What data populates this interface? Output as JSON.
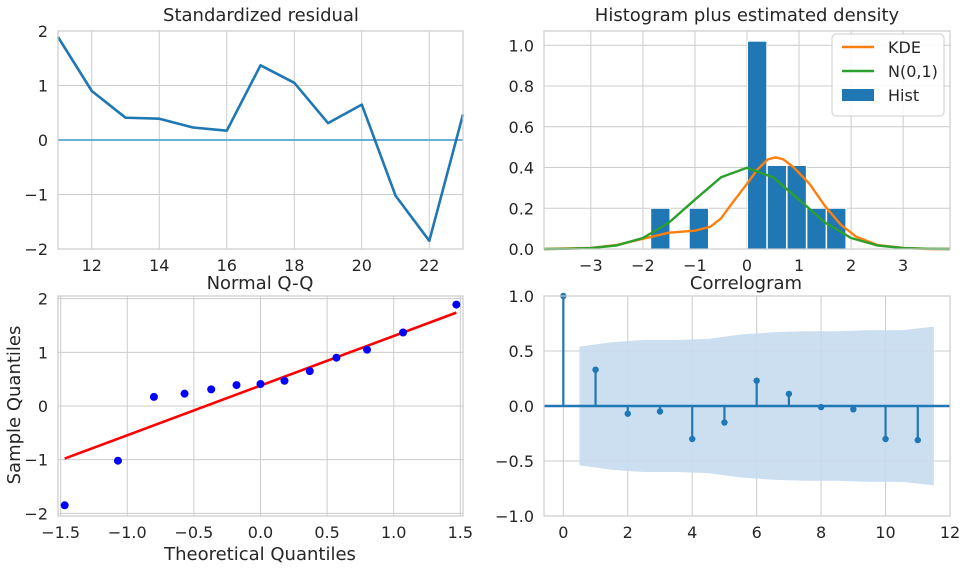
{
  "chart_data": [
    {
      "type": "line",
      "title": "Standardized residual",
      "xlabel": "",
      "ylabel": "",
      "xlim": [
        11,
        23
      ],
      "ylim": [
        -2,
        2
      ],
      "xticks": [
        12,
        14,
        16,
        18,
        20,
        22
      ],
      "xtick_labels": [
        "12",
        "14",
        "16",
        "18",
        "20",
        "22"
      ],
      "yticks": [
        -2,
        -1,
        0,
        1,
        2
      ],
      "ytick_labels": [
        "−2",
        "−1",
        "0",
        "1",
        "2"
      ],
      "grid": true,
      "series": [
        {
          "x": [
            11,
            12,
            13,
            14,
            15,
            16,
            17,
            18,
            19,
            20,
            21,
            22,
            23
          ],
          "values": [
            1.89,
            0.9,
            0.41,
            0.39,
            0.23,
            0.17,
            1.37,
            1.05,
            0.31,
            0.65,
            -1.02,
            -1.85,
            0.47
          ],
          "color": "#1f77b4"
        }
      ],
      "hline": {
        "y": 0,
        "color": "#6baed6"
      }
    },
    {
      "type": "bar",
      "title": "Histogram plus estimated density",
      "xlabel": "",
      "ylabel": "",
      "xlim": [
        -3.9,
        3.9
      ],
      "ylim": [
        0,
        1.07
      ],
      "xticks": [
        -3,
        -2,
        -1,
        0,
        1,
        2,
        3
      ],
      "xtick_labels": [
        "−3",
        "−2",
        "−1",
        "0",
        "1",
        "2",
        "3"
      ],
      "yticks": [
        0,
        0.2,
        0.4,
        0.6,
        0.8,
        1.0
      ],
      "ytick_labels": [
        "0.0",
        "0.2",
        "0.4",
        "0.6",
        "0.8",
        "1.0"
      ],
      "grid": true,
      "legend_position": "top-right",
      "legend": [
        "KDE",
        "N(0,1)",
        "Hist"
      ],
      "hist": {
        "name": "Hist",
        "color": "#1f77b4",
        "bins": [
          {
            "x0": -1.85,
            "x1": -1.48,
            "value": 0.2
          },
          {
            "x0": -1.11,
            "x1": -0.74,
            "value": 0.2
          },
          {
            "x0": 0.01,
            "x1": 0.38,
            "value": 1.02
          },
          {
            "x0": 0.39,
            "x1": 0.76,
            "value": 0.41
          },
          {
            "x0": 0.77,
            "x1": 1.14,
            "value": 0.41
          },
          {
            "x0": 1.15,
            "x1": 1.52,
            "value": 0.2
          },
          {
            "x0": 1.53,
            "x1": 1.9,
            "value": 0.2
          }
        ]
      },
      "series": [
        {
          "name": "KDE",
          "color": "#ff7f0e",
          "x": [
            -3.9,
            -3.0,
            -2.5,
            -2.0,
            -1.5,
            -1.0,
            -0.7,
            -0.5,
            -0.3,
            0.0,
            0.2,
            0.4,
            0.55,
            0.7,
            0.9,
            1.2,
            1.5,
            1.8,
            2.1,
            2.5,
            3.0,
            3.5,
            3.9
          ],
          "values": [
            0.0,
            0.005,
            0.02,
            0.05,
            0.08,
            0.09,
            0.11,
            0.15,
            0.22,
            0.32,
            0.39,
            0.44,
            0.45,
            0.44,
            0.4,
            0.32,
            0.21,
            0.12,
            0.06,
            0.02,
            0.005,
            0.0,
            0.0
          ]
        },
        {
          "name": "N(0,1)",
          "color": "#2ca02c",
          "x": [
            -3.9,
            -3.5,
            -3.0,
            -2.5,
            -2.0,
            -1.5,
            -1.0,
            -0.5,
            0.0,
            0.5,
            1.0,
            1.5,
            2.0,
            2.5,
            3.0,
            3.5,
            3.9
          ],
          "values": [
            0.0002,
            0.0009,
            0.0044,
            0.0175,
            0.054,
            0.1295,
            0.242,
            0.352,
            0.3989,
            0.352,
            0.242,
            0.1295,
            0.054,
            0.0175,
            0.0044,
            0.0009,
            0.0002
          ]
        }
      ]
    },
    {
      "type": "scatter",
      "title": "Normal Q-Q",
      "xlabel": "Theoretical Quantiles",
      "ylabel": "Sample Quantiles",
      "xlim": [
        -1.52,
        1.52
      ],
      "ylim": [
        -2.05,
        2.05
      ],
      "xticks": [
        -1.5,
        -1.0,
        -0.5,
        0.0,
        0.5,
        1.0,
        1.5
      ],
      "xtick_labels": [
        "−1.5",
        "−1.0",
        "−0.5",
        "0.0",
        "0.5",
        "1.0",
        "1.5"
      ],
      "yticks": [
        -2,
        -1,
        0,
        1,
        2
      ],
      "ytick_labels": [
        "−2",
        "−1",
        "0",
        "1",
        "2"
      ],
      "grid": true,
      "series": [
        {
          "color": "#0000ff",
          "x": [
            -1.47,
            -1.07,
            -0.8,
            -0.57,
            -0.37,
            -0.18,
            0.0,
            0.18,
            0.37,
            0.57,
            0.8,
            1.07,
            1.47
          ],
          "values": [
            -1.85,
            -1.02,
            0.17,
            0.23,
            0.31,
            0.39,
            0.41,
            0.47,
            0.65,
            0.9,
            1.05,
            1.37,
            1.89
          ]
        }
      ],
      "reference_line": {
        "x": [
          -1.47,
          1.47
        ],
        "values": [
          -0.98,
          1.74
        ],
        "color": "#ff0000"
      }
    },
    {
      "type": "bar",
      "title": "Correlogram",
      "xlabel": "",
      "ylabel": "",
      "xlim": [
        -0.6,
        12.0
      ],
      "ylim": [
        -1.0,
        1.0
      ],
      "xticks": [
        0,
        2,
        4,
        6,
        8,
        10,
        12
      ],
      "xtick_labels": [
        "0",
        "2",
        "4",
        "6",
        "8",
        "10",
        "12"
      ],
      "yticks": [
        -1.0,
        -0.5,
        0.0,
        0.5,
        1.0
      ],
      "ytick_labels": [
        "−1.0",
        "−0.5",
        "0.0",
        "0.5",
        "1.0"
      ],
      "grid": true,
      "lags": [
        0,
        1,
        2,
        3,
        4,
        5,
        6,
        7,
        8,
        9,
        10,
        11
      ],
      "values": [
        1.0,
        0.33,
        -0.07,
        -0.05,
        -0.3,
        -0.15,
        0.23,
        0.11,
        -0.01,
        -0.03,
        -0.3,
        -0.31
      ],
      "color": "#1f77b4",
      "confidence_band": {
        "color": "#c6dbef",
        "x": [
          0.5,
          1.5,
          2.5,
          3.5,
          4.5,
          5.5,
          6.5,
          7.5,
          8.5,
          9.5,
          10.5,
          11.5
        ],
        "upper": [
          0.54,
          0.58,
          0.6,
          0.6,
          0.61,
          0.65,
          0.67,
          0.68,
          0.68,
          0.69,
          0.69,
          0.72
        ]
      }
    }
  ]
}
